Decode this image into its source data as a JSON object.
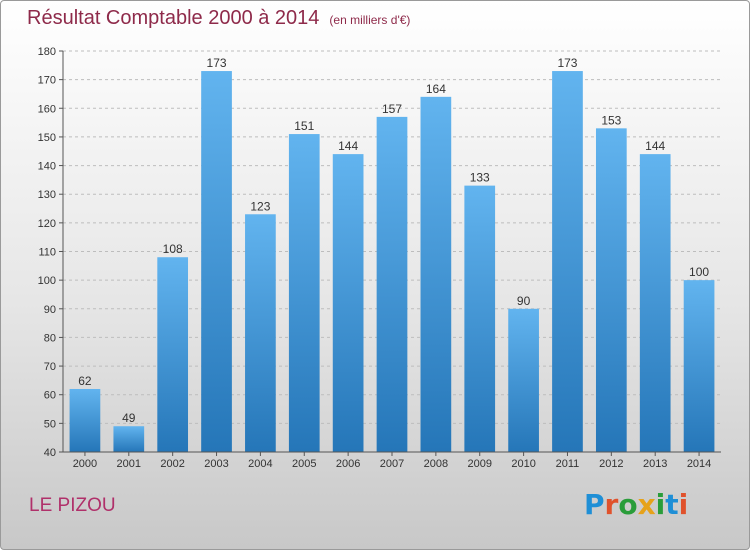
{
  "header": {
    "title": "Résultat Comptable 2000 à 2014",
    "subtitle": "(en milliers d'€)"
  },
  "footer": {
    "commune": "LE PIZOU",
    "brand": "Proxiti"
  },
  "colors": {
    "title": "#8e2a4a",
    "bar_light": "#62b4ef",
    "bar_dark": "#2576b8",
    "commune": "#b0306a"
  },
  "chart_data": {
    "type": "bar",
    "title": "Résultat Comptable 2000 à 2014",
    "subtitle": "(en milliers d'€)",
    "xlabel": "",
    "ylabel": "",
    "categories": [
      "2000",
      "2001",
      "2002",
      "2003",
      "2004",
      "2005",
      "2006",
      "2007",
      "2008",
      "2009",
      "2010",
      "2011",
      "2012",
      "2013",
      "2014"
    ],
    "values": [
      62,
      49,
      108,
      173,
      123,
      151,
      144,
      157,
      164,
      133,
      90,
      173,
      153,
      144,
      100
    ],
    "ylim": [
      40,
      180
    ],
    "yticks": [
      40,
      50,
      60,
      70,
      80,
      90,
      100,
      110,
      120,
      130,
      140,
      150,
      160,
      170,
      180
    ],
    "grid": true,
    "data_labels": true,
    "legend": "none"
  }
}
